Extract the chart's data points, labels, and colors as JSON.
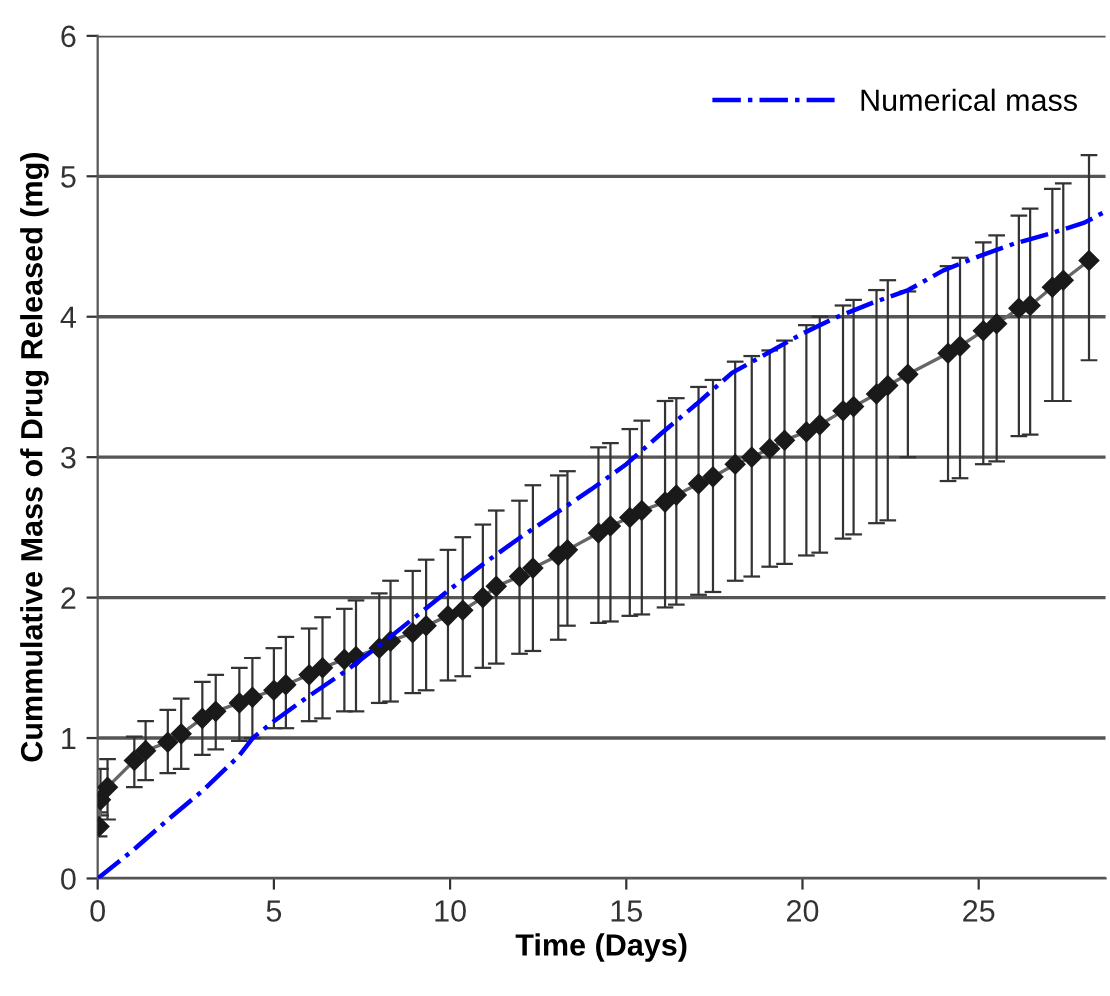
{
  "chart_data": {
    "type": "line",
    "xlabel": "Time (Days)",
    "ylabel": "Cummulative Mass of Drug Released (mg)",
    "xlim": [
      0,
      28.6
    ],
    "ylim": [
      0,
      6
    ],
    "xticks": [
      0,
      5,
      10,
      15,
      20,
      25
    ],
    "yticks": [
      0,
      1,
      2,
      3,
      4,
      5,
      6
    ],
    "grid": "y",
    "legend": "top right",
    "series": [
      {
        "color": "#1a1a1a",
        "marker": "diamond",
        "line_style": "solid",
        "x": [
          0.04,
          0.08,
          0.28,
          1.04,
          1.36,
          1.99,
          2.37,
          2.97,
          3.35,
          4.02,
          4.39,
          5.0,
          5.34,
          6.0,
          6.38,
          7.0,
          7.33,
          7.99,
          8.31,
          8.94,
          9.32,
          9.94,
          10.36,
          10.93,
          11.31,
          11.97,
          12.35,
          13.07,
          13.33,
          14.21,
          14.55,
          15.1,
          15.44,
          16.1,
          16.42,
          17.05,
          17.46,
          18.09,
          18.56,
          19.07,
          19.49,
          20.11,
          20.49,
          21.15,
          21.45,
          22.1,
          22.42,
          22.99,
          24.13,
          24.47,
          25.13,
          25.51,
          26.14,
          26.46,
          27.09,
          27.4,
          28.13
        ],
        "values": [
          0.37,
          0.56,
          0.65,
          0.84,
          0.91,
          0.97,
          1.03,
          1.14,
          1.19,
          1.25,
          1.29,
          1.34,
          1.38,
          1.45,
          1.5,
          1.56,
          1.58,
          1.64,
          1.69,
          1.75,
          1.8,
          1.87,
          1.91,
          2.0,
          2.08,
          2.15,
          2.21,
          2.3,
          2.34,
          2.46,
          2.51,
          2.57,
          2.62,
          2.68,
          2.73,
          2.81,
          2.86,
          2.95,
          3.0,
          3.06,
          3.12,
          3.18,
          3.23,
          3.33,
          3.36,
          3.45,
          3.51,
          3.59,
          3.74,
          3.79,
          3.9,
          3.95,
          4.06,
          4.08,
          4.21,
          4.26,
          4.4
        ],
        "errors": [
          [
            0.3,
            0.47
          ],
          [
            0.45,
            0.78
          ],
          [
            0.42,
            0.85
          ],
          [
            0.65,
            1.01
          ],
          [
            0.7,
            1.12
          ],
          [
            0.75,
            1.2
          ],
          [
            0.78,
            1.28
          ],
          [
            0.88,
            1.4
          ],
          [
            0.92,
            1.45
          ],
          [
            0.98,
            1.5
          ],
          [
            1.0,
            1.57
          ],
          [
            1.07,
            1.64
          ],
          [
            1.07,
            1.72
          ],
          [
            1.12,
            1.78
          ],
          [
            1.14,
            1.86
          ],
          [
            1.19,
            1.92
          ],
          [
            1.19,
            1.98
          ],
          [
            1.25,
            2.03
          ],
          [
            1.26,
            2.12
          ],
          [
            1.32,
            2.19
          ],
          [
            1.34,
            2.27
          ],
          [
            1.41,
            2.34
          ],
          [
            1.44,
            2.43
          ],
          [
            1.5,
            2.52
          ],
          [
            1.53,
            2.62
          ],
          [
            1.6,
            2.69
          ],
          [
            1.62,
            2.8
          ],
          [
            1.7,
            2.87
          ],
          [
            1.8,
            2.9
          ],
          [
            1.82,
            3.07
          ],
          [
            1.83,
            3.1
          ],
          [
            1.87,
            3.2
          ],
          [
            1.88,
            3.26
          ],
          [
            1.93,
            3.4
          ],
          [
            1.95,
            3.42
          ],
          [
            2.02,
            3.5
          ],
          [
            2.04,
            3.55
          ],
          [
            2.12,
            3.68
          ],
          [
            2.15,
            3.72
          ],
          [
            2.22,
            3.76
          ],
          [
            2.24,
            3.83
          ],
          [
            2.3,
            3.94
          ],
          [
            2.32,
            4.0
          ],
          [
            2.42,
            4.08
          ],
          [
            2.45,
            4.12
          ],
          [
            2.53,
            4.19
          ],
          [
            2.55,
            4.26
          ],
          [
            3.0,
            4.18
          ],
          [
            2.83,
            4.36
          ],
          [
            2.85,
            4.42
          ],
          [
            2.95,
            4.53
          ],
          [
            2.97,
            4.58
          ],
          [
            3.15,
            4.72
          ],
          [
            3.16,
            4.77
          ],
          [
            3.4,
            4.91
          ],
          [
            3.4,
            4.95
          ],
          [
            3.69,
            5.15
          ]
        ]
      },
      {
        "name": "Numerical mass",
        "color": "#0000ff",
        "marker": "none",
        "line_style": "dashdot",
        "x": [
          0,
          1,
          2,
          3,
          4,
          4.4,
          5,
          6,
          7,
          8,
          9,
          10,
          11,
          12,
          13,
          14,
          15,
          16,
          17,
          18,
          19,
          20,
          21,
          22,
          23,
          24,
          25,
          26,
          27,
          28,
          28.6
        ],
        "values": [
          0,
          0.2,
          0.42,
          0.63,
          0.87,
          1.0,
          1.12,
          1.3,
          1.47,
          1.66,
          1.86,
          2.06,
          2.25,
          2.43,
          2.6,
          2.77,
          2.95,
          3.17,
          3.38,
          3.6,
          3.74,
          3.88,
          4.0,
          4.1,
          4.19,
          4.33,
          4.43,
          4.52,
          4.59,
          4.67,
          4.75
        ]
      }
    ]
  }
}
